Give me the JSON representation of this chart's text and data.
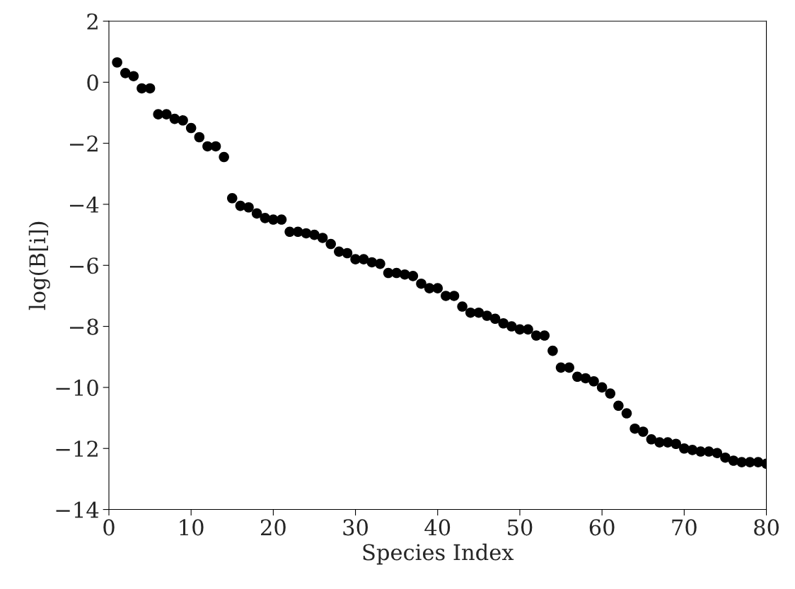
{
  "chart_data": {
    "type": "scatter",
    "xlabel": "Species Index",
    "ylabel": "log(B[i])",
    "x": [
      1,
      2,
      3,
      4,
      5,
      6,
      7,
      8,
      9,
      10,
      11,
      12,
      13,
      14,
      15,
      16,
      17,
      18,
      19,
      20,
      21,
      22,
      23,
      24,
      25,
      26,
      27,
      28,
      29,
      30,
      31,
      32,
      33,
      34,
      35,
      36,
      37,
      38,
      39,
      40,
      41,
      42,
      43,
      44,
      45,
      46,
      47,
      48,
      49,
      50,
      51,
      52,
      53,
      54,
      55,
      56,
      57,
      58,
      59,
      60,
      61,
      62,
      63,
      64,
      65,
      66,
      67,
      68,
      69,
      70,
      71,
      72,
      73,
      74,
      75,
      76,
      77,
      78,
      79,
      80
    ],
    "values": [
      0.65,
      0.3,
      0.2,
      -0.2,
      -0.2,
      -1.05,
      -1.05,
      -1.2,
      -1.25,
      -1.5,
      -1.8,
      -2.1,
      -2.1,
      -2.45,
      -3.8,
      -4.05,
      -4.1,
      -4.3,
      -4.45,
      -4.5,
      -4.5,
      -4.9,
      -4.9,
      -4.95,
      -5.0,
      -5.1,
      -5.3,
      -5.55,
      -5.6,
      -5.8,
      -5.8,
      -5.9,
      -5.95,
      -6.25,
      -6.25,
      -6.3,
      -6.35,
      -6.6,
      -6.75,
      -6.75,
      -7.0,
      -7.0,
      -7.35,
      -7.55,
      -7.55,
      -7.65,
      -7.75,
      -7.9,
      -8.0,
      -8.1,
      -8.1,
      -8.3,
      -8.3,
      -8.8,
      -9.35,
      -9.35,
      -9.65,
      -9.7,
      -9.8,
      -10.0,
      -10.2,
      -10.6,
      -10.85,
      -11.35,
      -11.45,
      -11.7,
      -11.8,
      -11.8,
      -11.85,
      -12.0,
      -12.05,
      -12.1,
      -12.1,
      -12.15,
      -12.3,
      -12.4,
      -12.45,
      -12.45,
      -12.45,
      -12.5
    ],
    "color": "#000000",
    "marker": "circle",
    "xlim": [
      0,
      80
    ],
    "xticks": [
      0,
      10,
      20,
      30,
      40,
      50,
      60,
      70,
      80
    ],
    "ylim": [
      -14,
      2
    ],
    "yticks": [
      -14,
      -12,
      -10,
      -8,
      -6,
      -4,
      -2,
      0,
      2
    ],
    "grid": false
  }
}
